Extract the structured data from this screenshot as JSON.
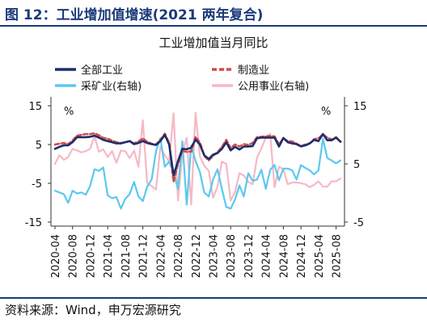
{
  "figure_title": "图 12：工业增加值增速(2021 两年复合)",
  "source": "资料来源：Wind，申万宏源研究",
  "chart_data": {
    "type": "line",
    "title": "工业增加值当月同比",
    "left_axis": {
      "unit": "%",
      "ylim": [
        -15,
        15
      ],
      "ticks": [
        15,
        5,
        -5,
        -15
      ]
    },
    "right_axis": {
      "unit": "%",
      "ylim": [
        -5,
        15
      ],
      "ticks": [
        15,
        5,
        -5
      ]
    },
    "x_labels": [
      "2020-04",
      "2020-08",
      "2020-12",
      "2021-04",
      "2021-08",
      "2021-12",
      "2022-04",
      "2022-08",
      "2022-12",
      "2023-04",
      "2023-08",
      "2023-12",
      "2024-04",
      "2024-08",
      "2024-12",
      "2025-04",
      "2025-08"
    ],
    "x_start": "2020-04",
    "legend_placement": "top",
    "series": [
      {
        "name": "全部工业",
        "axis": "left",
        "color": "#1b2f6e",
        "style": "solid",
        "values": [
          3.9,
          4.4,
          4.8,
          4.8,
          5.6,
          6.9,
          6.9,
          6.9,
          7.0,
          7.3,
          6.8,
          6.2,
          5.9,
          5.6,
          5.3,
          5.3,
          5.6,
          5.9,
          5.1,
          5.4,
          5.9,
          5.4,
          5.1,
          4.9,
          5.9,
          7.5,
          5.0,
          -2.9,
          0.7,
          3.9,
          3.8,
          4.2,
          6.3,
          5.0,
          2.2,
          1.3,
          2.4,
          2.8,
          3.9,
          5.6,
          3.5,
          4.4,
          3.7,
          4.5,
          4.5,
          4.6,
          6.6,
          6.8,
          6.8,
          6.8,
          6.8,
          4.5,
          6.7,
          5.6,
          5.3,
          5.1,
          4.5,
          4.8,
          5.3,
          6.2,
          5.9,
          7.7,
          6.1,
          6.1,
          6.8,
          5.7
        ]
      },
      {
        "name": "制造业",
        "axis": "left",
        "color": "#d44b4b",
        "style": "dashed",
        "values": [
          5.0,
          5.2,
          5.4,
          5.1,
          6.0,
          7.3,
          7.5,
          7.7,
          7.7,
          7.9,
          7.4,
          6.7,
          6.5,
          6.0,
          5.6,
          5.4,
          5.6,
          5.9,
          5.3,
          5.8,
          6.6,
          5.7,
          5.2,
          5.0,
          6.2,
          7.8,
          5.4,
          -4.6,
          0.1,
          3.4,
          3.1,
          3.2,
          7.0,
          5.5,
          2.1,
          0.9,
          2.1,
          3.0,
          4.4,
          6.2,
          4.1,
          5.0,
          4.5,
          5.1,
          4.9,
          5.4,
          6.9,
          7.0,
          7.1,
          7.2,
          7.1,
          5.0,
          6.6,
          5.9,
          5.8,
          5.2,
          4.6,
          5.0,
          5.3,
          6.4,
          6.6,
          7.6,
          6.8,
          6.3,
          6.9,
          5.8
        ]
      },
      {
        "name": "采矿业(右轴)",
        "axis": "right",
        "color": "#5bc8f0",
        "style": "solid",
        "values": [
          0.4,
          0.1,
          -0.2,
          -1.7,
          0.4,
          -0.1,
          0.1,
          -0.3,
          1.2,
          4.1,
          3.8,
          4.4,
          -0.4,
          -0.9,
          -0.7,
          -2.7,
          -1.0,
          -0.2,
          1.9,
          -0.6,
          -1.4,
          1.1,
          2.3,
          7.2,
          9.4,
          4.5,
          5.4,
          3.5,
          0.7,
          8.9,
          -2.0,
          8.1,
          5.5,
          3.6,
          0.1,
          -0.6,
          2.3,
          4.1,
          0.7,
          -2.4,
          -2.7,
          -1.1,
          1.3,
          -0.6,
          3.4,
          2.1,
          2.3,
          4.0,
          0.7,
          4.0,
          4.8,
          2.2,
          4.2,
          4.2,
          3.9,
          2.3,
          4.8,
          4.3,
          3.9,
          3.2,
          3.9,
          9.3,
          6.0,
          5.6,
          5.1,
          5.6
        ]
      },
      {
        "name": "公用事业(右轴)",
        "axis": "right",
        "color": "#f5b9c4",
        "style": "solid",
        "values": [
          5.0,
          6.5,
          5.7,
          6.2,
          7.6,
          7.3,
          7.0,
          7.2,
          7.6,
          9.8,
          7.1,
          7.5,
          6.2,
          7.2,
          5.2,
          7.3,
          7.2,
          6.0,
          7.3,
          4.5,
          12.5,
          1.7,
          1.2,
          0.6,
          7.9,
          6.5,
          5.4,
          13.7,
          -1.3,
          6.8,
          9.5,
          -2.0,
          13.8,
          6.3,
          4.7,
          3.8,
          -0.8,
          1.1,
          5.4,
          5.0,
          -1.3,
          0.2,
          3.4,
          3.0,
          1.9,
          1.5,
          6.1,
          7.7,
          9.5,
          10.2,
          1.0,
          4.5,
          4.1,
          1.5,
          1.8,
          1.8,
          1.7,
          1.5,
          1.0,
          1.4,
          2.0,
          1.1,
          1.1,
          2.0,
          2.0,
          2.5
        ]
      }
    ]
  }
}
